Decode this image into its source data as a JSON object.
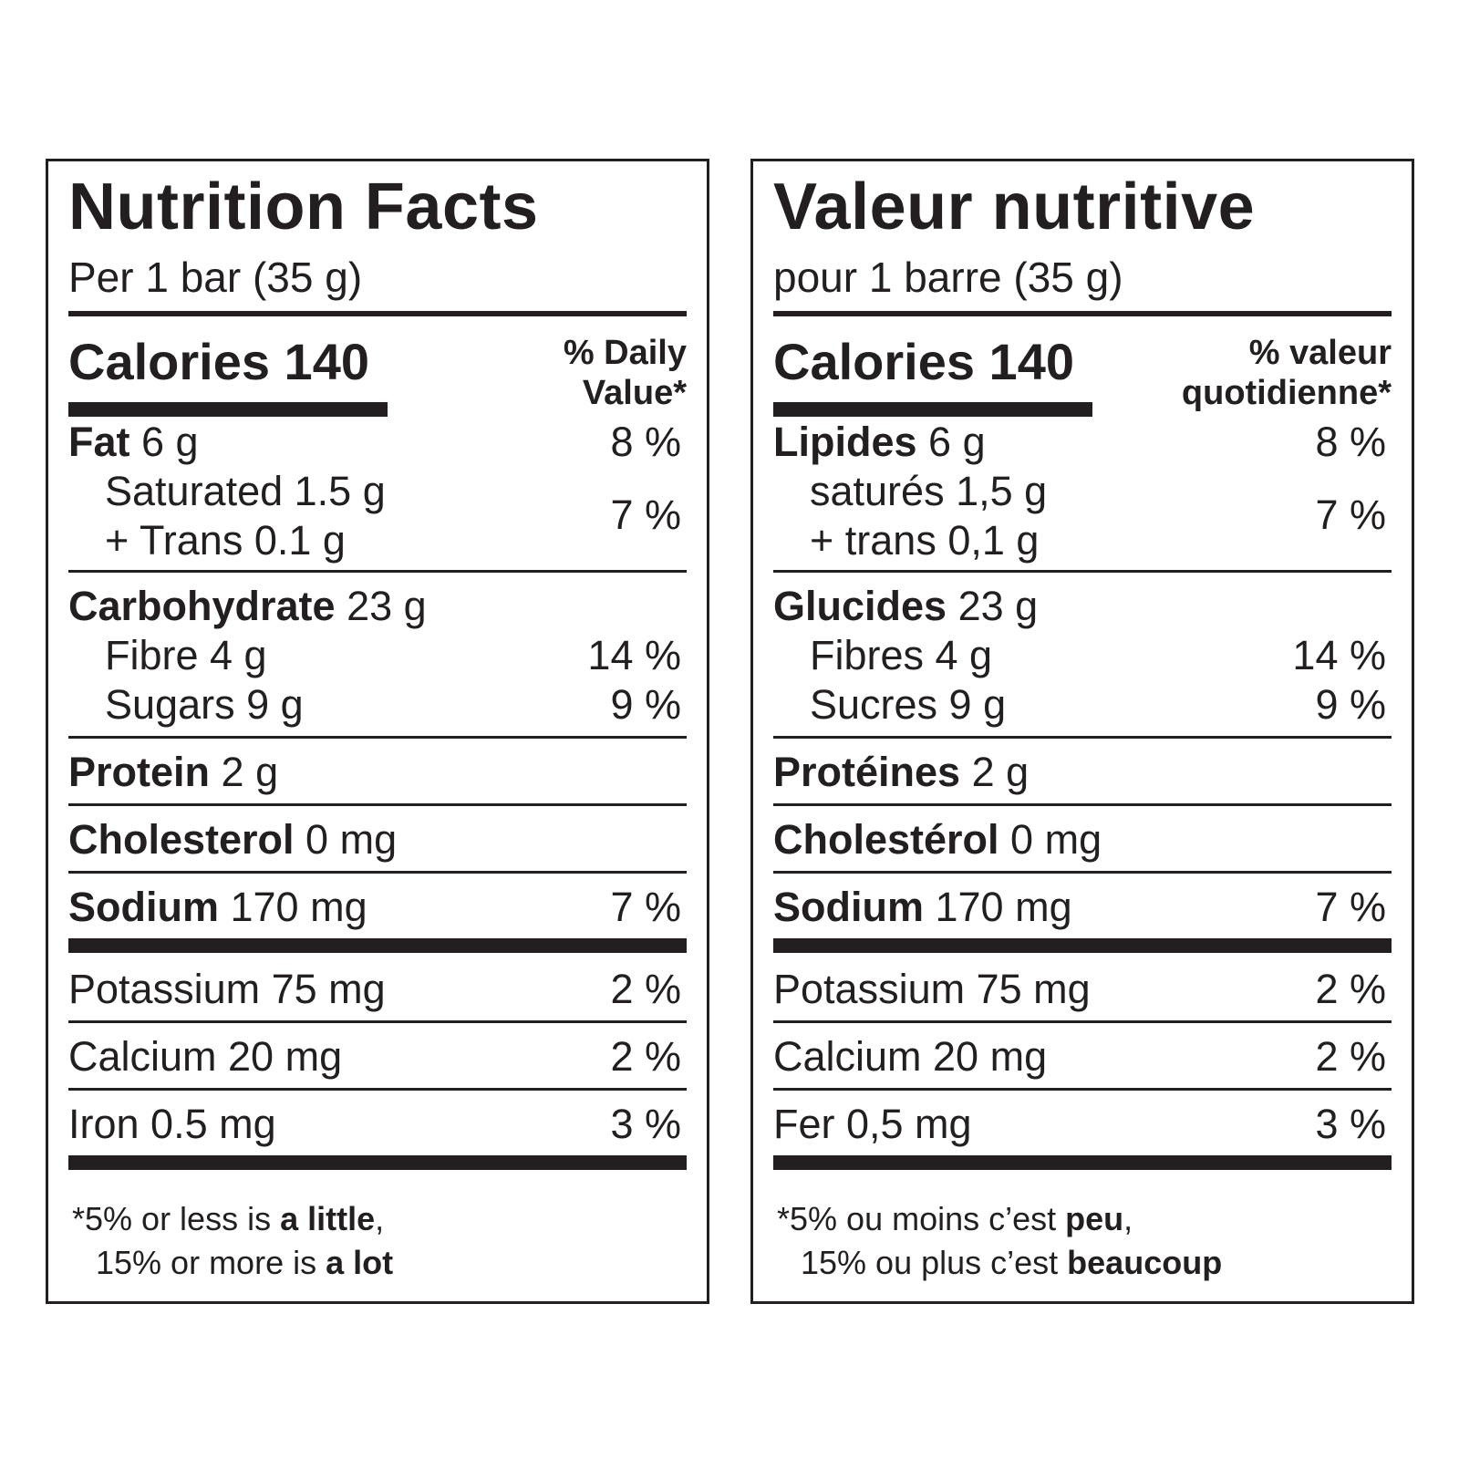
{
  "english": {
    "title": "Nutrition Facts",
    "serving": "Per 1 bar (35 g)",
    "calories": "Calories 140",
    "dv_line1": "% Daily",
    "dv_line2": "Value*",
    "fat_label": "Fat",
    "fat_amount": " 6 g",
    "fat_pct": "8 %",
    "saturated": "Saturated 1.5 g",
    "trans": "+ Trans 0.1 g",
    "sat_trans_pct": "7 %",
    "carb_label": "Carbohydrate",
    "carb_amount": " 23 g",
    "fibre": "Fibre 4 g",
    "fibre_pct": "14 %",
    "sugars": "Sugars 9 g",
    "sugars_pct": "9 %",
    "protein_label": "Protein",
    "protein_amount": " 2 g",
    "cholesterol_label": "Cholesterol",
    "cholesterol_amount": " 0 mg",
    "sodium_label": "Sodium",
    "sodium_amount": " 170 mg",
    "sodium_pct": "7 %",
    "potassium": "Potassium 75 mg",
    "potassium_pct": "2 %",
    "calcium": "Calcium 20 mg",
    "calcium_pct": "2 %",
    "iron": "Iron 0.5 mg",
    "iron_pct": "3 %",
    "foot1_pre": "*5% or less is ",
    "foot1_bold": "a little",
    "foot1_post": ",",
    "foot2_pre": "15% or more is ",
    "foot2_bold": "a lot"
  },
  "french": {
    "title": "Valeur nutritive",
    "serving": "pour 1 barre (35 g)",
    "calories": "Calories 140",
    "dv_line1": "% valeur",
    "dv_line2": "quotidienne*",
    "fat_label": "Lipides",
    "fat_amount": " 6 g",
    "fat_pct": "8 %",
    "saturated": "saturés 1,5 g",
    "trans": "+ trans 0,1 g",
    "sat_trans_pct": "7 %",
    "carb_label": "Glucides",
    "carb_amount": " 23 g",
    "fibre": "Fibres 4 g",
    "fibre_pct": "14 %",
    "sugars": "Sucres 9 g",
    "sugars_pct": "9 %",
    "protein_label": "Protéines",
    "protein_amount": " 2 g",
    "cholesterol_label": "Cholestérol",
    "cholesterol_amount": " 0 mg",
    "sodium_label": "Sodium",
    "sodium_amount": " 170 mg",
    "sodium_pct": "7 %",
    "potassium": "Potassium 75 mg",
    "potassium_pct": "2 %",
    "calcium": "Calcium 20 mg",
    "calcium_pct": "2 %",
    "iron": "Fer 0,5 mg",
    "iron_pct": "3 %",
    "foot1_pre": "*5% ou moins c’est ",
    "foot1_bold": "peu",
    "foot1_post": ",",
    "foot2_pre": "15% ou plus c’est ",
    "foot2_bold": "beaucoup"
  }
}
